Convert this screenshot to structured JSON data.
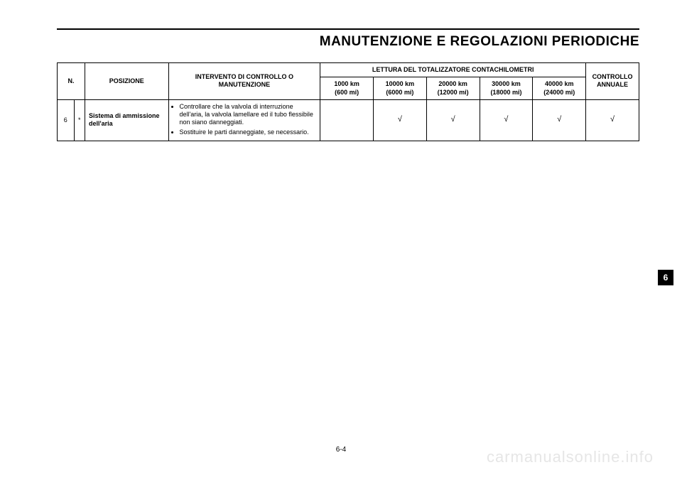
{
  "header": {
    "title": "MANUTENZIONE E REGOLAZIONI PERIODICHE"
  },
  "table": {
    "headers": {
      "n": "N.",
      "posizione": "POSIZIONE",
      "intervento": "INTERVENTO DI CONTROLLO O MANUTENZIONE",
      "lettura": "LETTURA DEL TOTALIZZATORE CONTACHILOMETRI",
      "controllo": "CONTROLLO ANNUALE",
      "km1_a": "1000 km",
      "km1_b": "(600 mi)",
      "km2_a": "10000 km",
      "km2_b": "(6000 mi)",
      "km3_a": "20000 km",
      "km3_b": "(12000 mi)",
      "km4_a": "30000 km",
      "km4_b": "(18000 mi)",
      "km5_a": "40000 km",
      "km5_b": "(24000 mi)"
    },
    "row": {
      "n": "6",
      "star": "*",
      "posizione": "Sistema di ammissione dell'aria",
      "b1": "Controllare che la valvola di interruzione dell'aria, la valvola lamellare ed il tubo flessibile non siano danneggiati.",
      "b2": "Sostituire le parti danneggiate, se necessario.",
      "c1": "",
      "c2": "√",
      "c3": "√",
      "c4": "√",
      "c5": "√",
      "cann": "√"
    }
  },
  "sidebar": {
    "tab": "6"
  },
  "footer": {
    "pagenum": "6-4",
    "watermark": "carmanualsonline.info"
  },
  "style": {
    "background": "#ffffff",
    "text": "#000000",
    "watermark_color": "#e6e6e6"
  }
}
